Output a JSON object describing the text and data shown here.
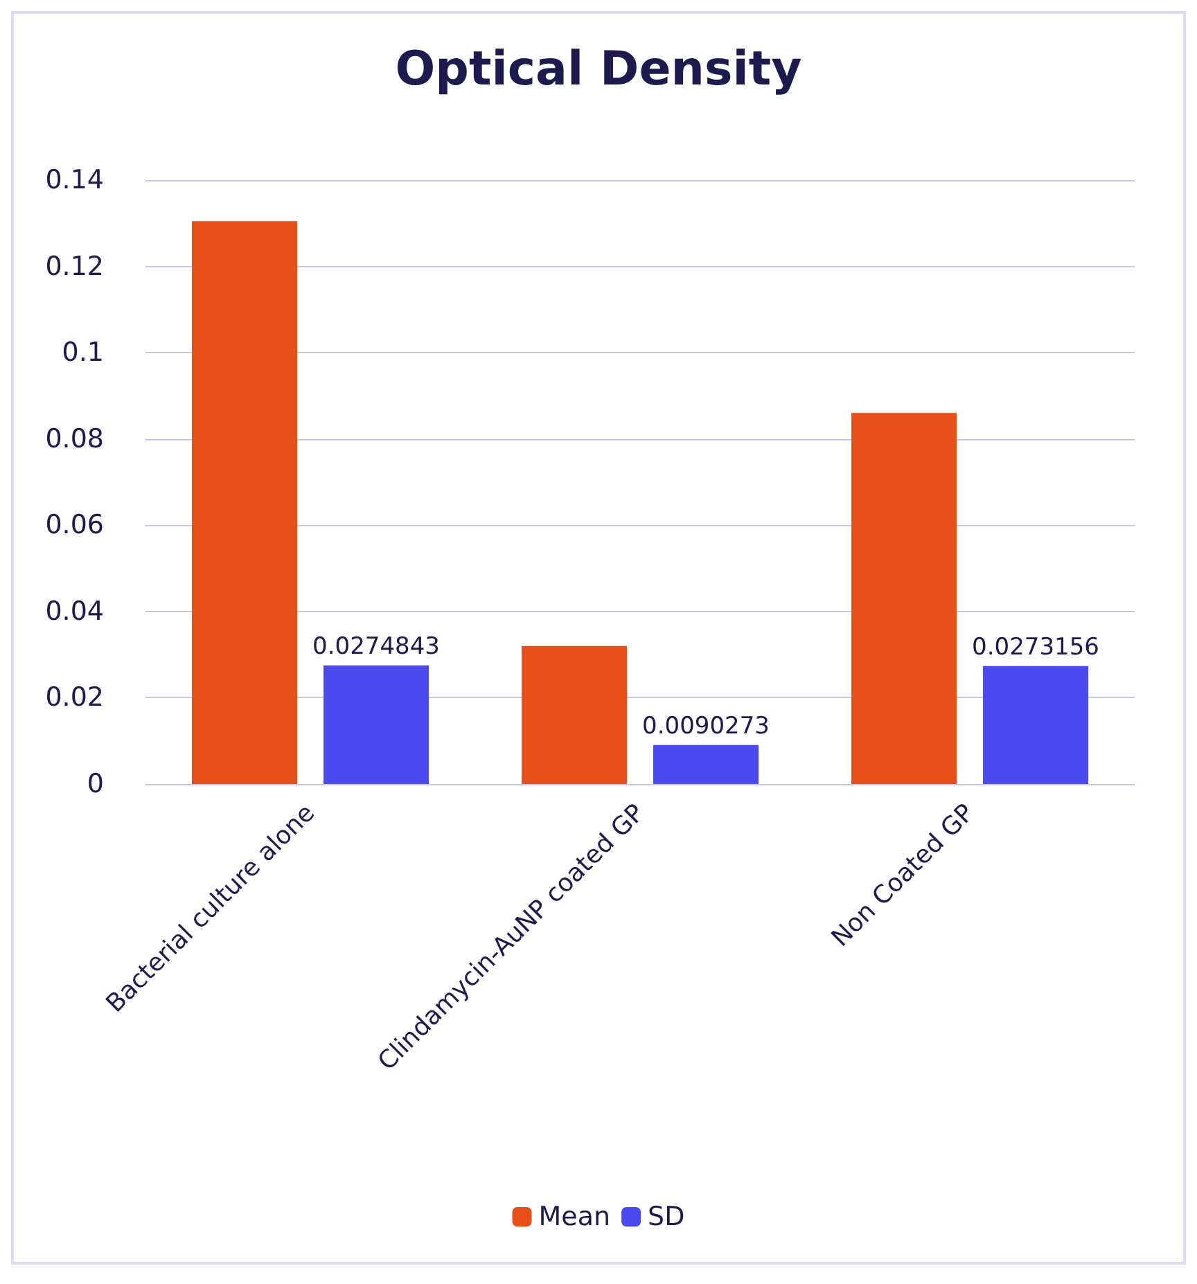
{
  "chart_data": {
    "type": "bar",
    "title": "Optical Density",
    "categories": [
      "Bacterial culture alone",
      "Clindamycin-AuNP coated GP",
      "Non Coated GP"
    ],
    "series": [
      {
        "name": "Mean",
        "color": "#e8501a",
        "values": [
          0.1305,
          0.032,
          0.086
        ]
      },
      {
        "name": "SD",
        "color": "#4a4af0",
        "values": [
          0.0274843,
          0.0090273,
          0.0273156
        ],
        "value_labels": [
          "0.0274843",
          "0.0090273",
          "0.0273156"
        ]
      }
    ],
    "ylim": [
      0,
      0.14
    ],
    "yticks": [
      0,
      0.02,
      0.04,
      0.06,
      0.08,
      0.1,
      0.12,
      0.14
    ],
    "grid": "y",
    "legend": "bottom"
  }
}
